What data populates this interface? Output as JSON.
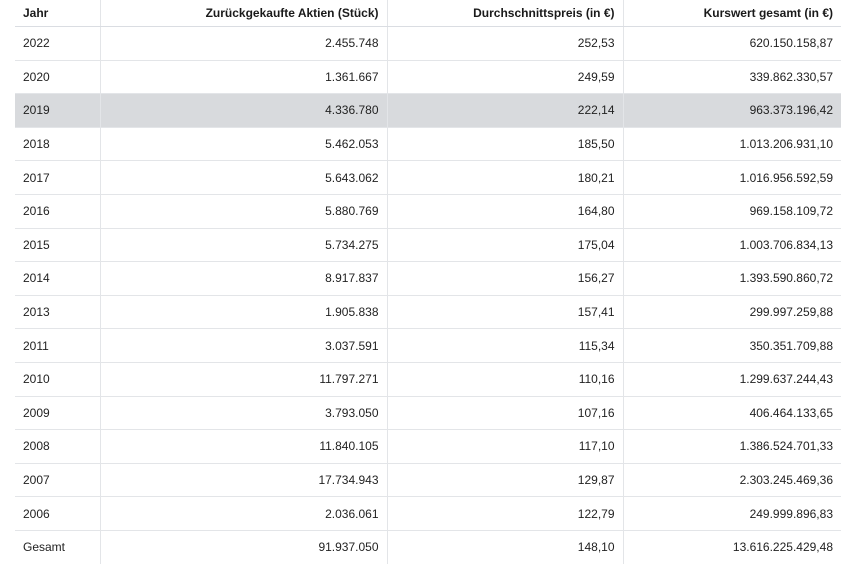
{
  "table": {
    "headers": [
      "Jahr",
      "Zurückgekaufte Aktien (Stück)",
      "Durchschnittspreis (in €)",
      "Kurswert gesamt (in €)"
    ],
    "highlight_year": "2019",
    "rows": [
      [
        "2022",
        "2.455.748",
        "252,53",
        "620.150.158,87"
      ],
      [
        "2020",
        "1.361.667",
        "249,59",
        "339.862.330,57"
      ],
      [
        "2019",
        "4.336.780",
        "222,14",
        "963.373.196,42"
      ],
      [
        "2018",
        "5.462.053",
        "185,50",
        "1.013.206.931,10"
      ],
      [
        "2017",
        "5.643.062",
        "180,21",
        "1.016.956.592,59"
      ],
      [
        "2016",
        "5.880.769",
        "164,80",
        "969.158.109,72"
      ],
      [
        "2015",
        "5.734.275",
        "175,04",
        "1.003.706.834,13"
      ],
      [
        "2014",
        "8.917.837",
        "156,27",
        "1.393.590.860,72"
      ],
      [
        "2013",
        "1.905.838",
        "157,41",
        "299.997.259,88"
      ],
      [
        "2011",
        "3.037.591",
        "115,34",
        "350.351.709,88"
      ],
      [
        "2010",
        "11.797.271",
        "110,16",
        "1.299.637.244,43"
      ],
      [
        "2009",
        "3.793.050",
        "107,16",
        "406.464.133,65"
      ],
      [
        "2008",
        "11.840.105",
        "117,10",
        "1.386.524.701,33"
      ],
      [
        "2007",
        "17.734.943",
        "129,87",
        "2.303.245.469,36"
      ],
      [
        "2006",
        "2.036.061",
        "122,79",
        "249.999.896,83"
      ]
    ],
    "total": [
      "Gesamt",
      "91.937.050",
      "148,10",
      "13.616.225.429,48"
    ]
  },
  "colors": {
    "highlight_row": "#d8dadd",
    "grid": "#e3e5e8",
    "text": "#222222"
  }
}
